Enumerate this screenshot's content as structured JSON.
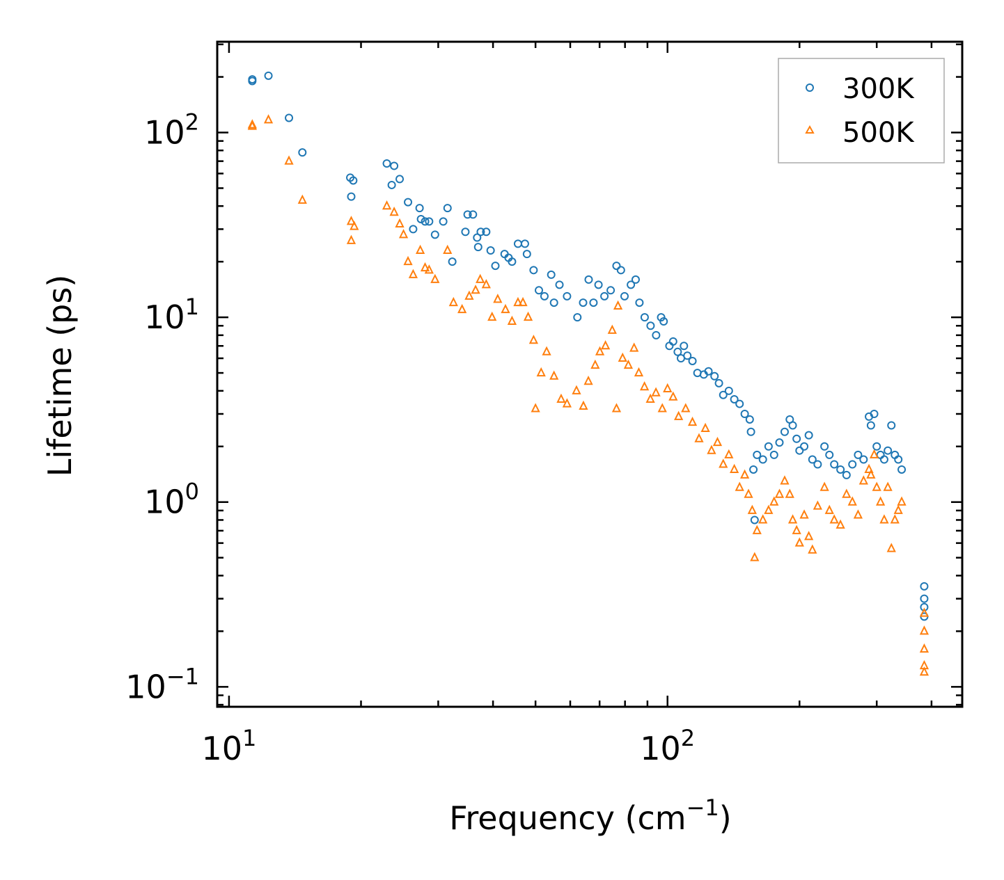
{
  "chart_data": {
    "type": "scatter",
    "title": "",
    "xlabel": "Frequency (cm",
    "xlabel_sup": "−1",
    "xlabel_close": ")",
    "ylabel": "Lifetime (ps)",
    "xscale": "log",
    "yscale": "log",
    "xlim": [
      9.4,
      470
    ],
    "ylim": [
      0.078,
      310
    ],
    "legend_position": "top-right",
    "xticks": [
      {
        "value": 10,
        "base": "10",
        "exp": "1"
      },
      {
        "value": 100,
        "base": "10",
        "exp": "2"
      }
    ],
    "yticks": [
      {
        "value": 0.1,
        "base": "10",
        "exp": "−1"
      },
      {
        "value": 1,
        "base": "10",
        "exp": "0"
      },
      {
        "value": 10,
        "base": "10",
        "exp": "1"
      },
      {
        "value": 100,
        "base": "10",
        "exp": "2"
      }
    ],
    "series": [
      {
        "name": "300K",
        "marker": "circle",
        "color": "#1f77b4",
        "points": [
          [
            11.3,
            190
          ],
          [
            11.3,
            194
          ],
          [
            12.3,
            203
          ],
          [
            13.7,
            120
          ],
          [
            14.7,
            78
          ],
          [
            18.9,
            57
          ],
          [
            19.2,
            55
          ],
          [
            19.0,
            45
          ],
          [
            22.9,
            68
          ],
          [
            23.8,
            66
          ],
          [
            23.5,
            52
          ],
          [
            24.5,
            56
          ],
          [
            25.6,
            42
          ],
          [
            26.3,
            30
          ],
          [
            27.2,
            39
          ],
          [
            27.4,
            34
          ],
          [
            28,
            33
          ],
          [
            28.6,
            33
          ],
          [
            29.5,
            28
          ],
          [
            31.5,
            39
          ],
          [
            30.8,
            33
          ],
          [
            32.3,
            20
          ],
          [
            35,
            36
          ],
          [
            36,
            36
          ],
          [
            34.6,
            29
          ],
          [
            36.8,
            27
          ],
          [
            37.5,
            29
          ],
          [
            38.6,
            29
          ],
          [
            37,
            24
          ],
          [
            39.5,
            23
          ],
          [
            40.5,
            19
          ],
          [
            42.5,
            22
          ],
          [
            43.4,
            21
          ],
          [
            44.2,
            20
          ],
          [
            45.6,
            25
          ],
          [
            47.3,
            25
          ],
          [
            47.8,
            22
          ],
          [
            49.5,
            18
          ],
          [
            50.9,
            14
          ],
          [
            52.4,
            13
          ],
          [
            54.3,
            17
          ],
          [
            55.1,
            12
          ],
          [
            56.7,
            15
          ],
          [
            59,
            13
          ],
          [
            62.3,
            10
          ],
          [
            64.2,
            12
          ],
          [
            66.1,
            16
          ],
          [
            67.8,
            12
          ],
          [
            69.6,
            15
          ],
          [
            71.8,
            13
          ],
          [
            74.2,
            14
          ],
          [
            76.5,
            19
          ],
          [
            78.3,
            18
          ],
          [
            79.8,
            13
          ],
          [
            82.5,
            15
          ],
          [
            84.6,
            16
          ],
          [
            86.3,
            12
          ],
          [
            88.7,
            10
          ],
          [
            91.5,
            9
          ],
          [
            94.2,
            8
          ],
          [
            96.7,
            10
          ],
          [
            98,
            9.5
          ],
          [
            101,
            7
          ],
          [
            103,
            7.4
          ],
          [
            105.5,
            6.5
          ],
          [
            107.3,
            6
          ],
          [
            109,
            7
          ],
          [
            111,
            6.2
          ],
          [
            114,
            5.8
          ],
          [
            117,
            5
          ],
          [
            121,
            4.9
          ],
          [
            124,
            5.1
          ],
          [
            128,
            4.8
          ],
          [
            131,
            4.4
          ],
          [
            134,
            3.8
          ],
          [
            138,
            4
          ],
          [
            142,
            3.6
          ],
          [
            146,
            3.4
          ],
          [
            150,
            3
          ],
          [
            154,
            2.8
          ],
          [
            155,
            2.4
          ],
          [
            157,
            1.5
          ],
          [
            158,
            0.8
          ],
          [
            160,
            1.8
          ],
          [
            165,
            1.7
          ],
          [
            170,
            2
          ],
          [
            175,
            1.8
          ],
          [
            180,
            2.1
          ],
          [
            185,
            2.4
          ],
          [
            190,
            2.8
          ],
          [
            193,
            2.6
          ],
          [
            197,
            2.2
          ],
          [
            200,
            1.9
          ],
          [
            205,
            2
          ],
          [
            210,
            2.3
          ],
          [
            214,
            1.7
          ],
          [
            220,
            1.6
          ],
          [
            228,
            2
          ],
          [
            234,
            1.8
          ],
          [
            240,
            1.6
          ],
          [
            248,
            1.5
          ],
          [
            256,
            1.4
          ],
          [
            264,
            1.6
          ],
          [
            272,
            1.8
          ],
          [
            280,
            1.7
          ],
          [
            288,
            2.9
          ],
          [
            291,
            2.6
          ],
          [
            296,
            3
          ],
          [
            300,
            2
          ],
          [
            306,
            1.8
          ],
          [
            312,
            1.7
          ],
          [
            318,
            1.9
          ],
          [
            324,
            2.6
          ],
          [
            330,
            1.8
          ],
          [
            336,
            1.7
          ],
          [
            342,
            1.5
          ],
          [
            385,
            0.35
          ],
          [
            385,
            0.3
          ],
          [
            385,
            0.27
          ],
          [
            385,
            0.24
          ]
        ]
      },
      {
        "name": "500K",
        "marker": "triangle",
        "color": "#ff7f0e",
        "points": [
          [
            11.3,
            110
          ],
          [
            11.3,
            108
          ],
          [
            12.3,
            117
          ],
          [
            13.7,
            70
          ],
          [
            14.7,
            43
          ],
          [
            19.0,
            33
          ],
          [
            19.3,
            31
          ],
          [
            19.0,
            26
          ],
          [
            22.9,
            40
          ],
          [
            23.8,
            37
          ],
          [
            24.5,
            32
          ],
          [
            25,
            28
          ],
          [
            25.6,
            20
          ],
          [
            26.3,
            17
          ],
          [
            27.3,
            23
          ],
          [
            28,
            18.5
          ],
          [
            28.6,
            18
          ],
          [
            29.5,
            16
          ],
          [
            31.5,
            23
          ],
          [
            32.5,
            12
          ],
          [
            34,
            11
          ],
          [
            35.3,
            13
          ],
          [
            36.5,
            14
          ],
          [
            37.4,
            16
          ],
          [
            38.6,
            15
          ],
          [
            39.8,
            10
          ],
          [
            41,
            12.5
          ],
          [
            42.7,
            11
          ],
          [
            44.2,
            9.5
          ],
          [
            45.6,
            12
          ],
          [
            46.8,
            12
          ],
          [
            48.1,
            10
          ],
          [
            49.5,
            7.5
          ],
          [
            50,
            3.2
          ],
          [
            51.5,
            5
          ],
          [
            53,
            6.5
          ],
          [
            55.1,
            4.8
          ],
          [
            57.2,
            3.6
          ],
          [
            59,
            3.4
          ],
          [
            62,
            4
          ],
          [
            64.3,
            3.3
          ],
          [
            66,
            4.5
          ],
          [
            68.4,
            5.5
          ],
          [
            70.1,
            6.5
          ],
          [
            72.2,
            7
          ],
          [
            74.8,
            8.5
          ],
          [
            76.5,
            3.2
          ],
          [
            77.1,
            11.5
          ],
          [
            79,
            6
          ],
          [
            81.4,
            5.5
          ],
          [
            83.9,
            6.8
          ],
          [
            86,
            5
          ],
          [
            88.6,
            4.2
          ],
          [
            91.4,
            3.6
          ],
          [
            94.1,
            3.9
          ],
          [
            97.3,
            3.2
          ],
          [
            100,
            4.1
          ],
          [
            103,
            3.7
          ],
          [
            106,
            2.9
          ],
          [
            110,
            3.2
          ],
          [
            114,
            2.7
          ],
          [
            118,
            2.2
          ],
          [
            122,
            2.5
          ],
          [
            126,
            1.9
          ],
          [
            130,
            2.1
          ],
          [
            134,
            1.6
          ],
          [
            138,
            1.8
          ],
          [
            142,
            1.5
          ],
          [
            146,
            1.2
          ],
          [
            150,
            1.4
          ],
          [
            153,
            1.1
          ],
          [
            156,
            0.9
          ],
          [
            158,
            0.5
          ],
          [
            160,
            0.7
          ],
          [
            165,
            0.8
          ],
          [
            170,
            0.9
          ],
          [
            175,
            1
          ],
          [
            180,
            1.1
          ],
          [
            185,
            1.3
          ],
          [
            190,
            1.1
          ],
          [
            193,
            0.8
          ],
          [
            197,
            0.7
          ],
          [
            200,
            0.6
          ],
          [
            205,
            0.85
          ],
          [
            210,
            0.65
          ],
          [
            214,
            0.55
          ],
          [
            220,
            0.95
          ],
          [
            228,
            1.2
          ],
          [
            234,
            0.9
          ],
          [
            240,
            0.8
          ],
          [
            248,
            0.75
          ],
          [
            256,
            1.1
          ],
          [
            264,
            1.0
          ],
          [
            272,
            0.85
          ],
          [
            280,
            1.3
          ],
          [
            288,
            1.5
          ],
          [
            291,
            1.4
          ],
          [
            296,
            1.8
          ],
          [
            300,
            1.2
          ],
          [
            306,
            1.0
          ],
          [
            312,
            0.8
          ],
          [
            318,
            1.2
          ],
          [
            324,
            0.56
          ],
          [
            330,
            0.8
          ],
          [
            336,
            0.9
          ],
          [
            342,
            1.0
          ],
          [
            385,
            0.25
          ],
          [
            385,
            0.2
          ],
          [
            385,
            0.16
          ],
          [
            385,
            0.13
          ],
          [
            385,
            0.12
          ]
        ]
      }
    ]
  }
}
